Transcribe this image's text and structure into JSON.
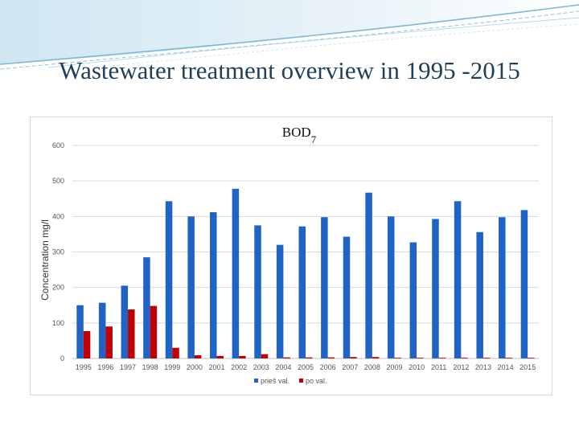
{
  "slide": {
    "title": "Wastewater treatment overview in 1995 -2015"
  },
  "colors": {
    "series_before": "#1f63c6",
    "series_after": "#c00000",
    "grid": "#d9d9d9",
    "title": "#1f3f5b"
  },
  "chart_data": {
    "type": "bar",
    "title_main": "BOD",
    "title_sub": "7",
    "ylabel": "Concentration mg/l",
    "xlabel": "",
    "ylim": [
      0,
      600
    ],
    "yticks": [
      0,
      100,
      200,
      300,
      400,
      500,
      600
    ],
    "grid": true,
    "legend_position": "bottom",
    "categories": [
      "1995",
      "1996",
      "1997",
      "1998",
      "1999",
      "2000",
      "2001",
      "2002",
      "2003",
      "2004",
      "2005",
      "2006",
      "2007",
      "2008",
      "2009",
      "2010",
      "2011",
      "2012",
      "2013",
      "2014",
      "2015"
    ],
    "series": [
      {
        "name": "prieš val.",
        "color": "#1f63c6",
        "values": [
          150,
          157,
          205,
          285,
          443,
          400,
          412,
          478,
          375,
          320,
          372,
          398,
          343,
          467,
          400,
          327,
          393,
          443,
          356,
          398,
          418
        ]
      },
      {
        "name": "po val.",
        "color": "#c00000",
        "values": [
          77,
          90,
          138,
          148,
          30,
          9,
          7,
          7,
          12,
          3,
          3,
          3,
          4,
          4,
          2,
          2,
          2,
          2,
          2,
          2,
          2
        ]
      }
    ]
  }
}
